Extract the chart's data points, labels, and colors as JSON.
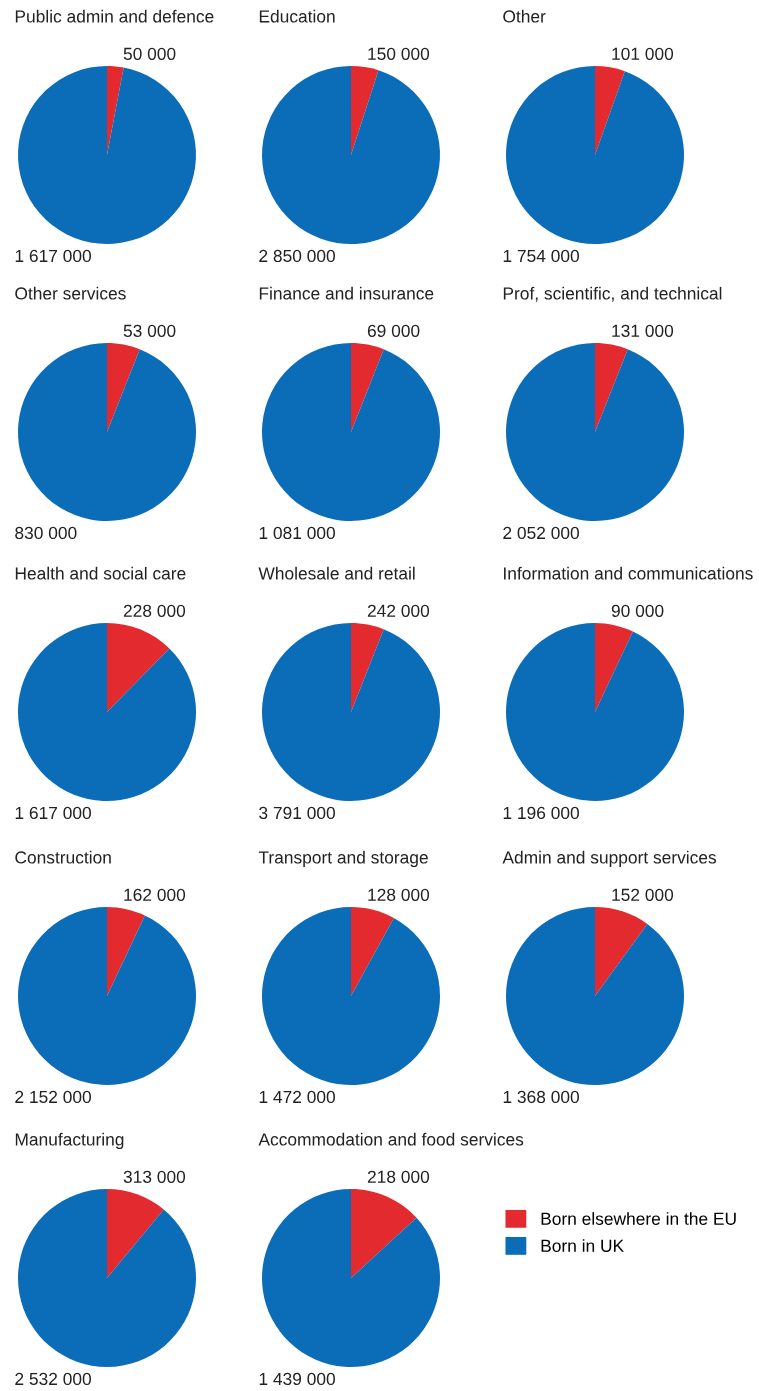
{
  "chart_data": [
    {
      "type": "pie",
      "title": "Public admin and defence",
      "categories": [
        null,
        null
      ],
      "values": [
        50000,
        1617000
      ],
      "value_labels": [
        "50 000",
        "1 617 000"
      ],
      "colors": [
        "#e32a2e",
        "#0b6db7"
      ],
      "legend": false
    },
    {
      "type": "pie",
      "title": "Education",
      "categories": [
        null,
        null
      ],
      "values": [
        150000,
        2850000
      ],
      "value_labels": [
        "150 000",
        "2 850 000"
      ],
      "colors": [
        "#e32a2e",
        "#0b6db7"
      ],
      "legend": false
    },
    {
      "type": "pie",
      "title": "Other",
      "categories": [
        null,
        null
      ],
      "values": [
        101000,
        1754000
      ],
      "value_labels": [
        "101 000",
        "1 754 000"
      ],
      "colors": [
        "#e32a2e",
        "#0b6db7"
      ],
      "legend": false
    },
    {
      "type": "pie",
      "title": "Other services",
      "categories": [
        null,
        null
      ],
      "values": [
        53000,
        830000
      ],
      "value_labels": [
        "53 000",
        "830 000"
      ],
      "colors": [
        "#e32a2e",
        "#0b6db7"
      ],
      "legend": false
    },
    {
      "type": "pie",
      "title": "Finance and insurance",
      "categories": [
        null,
        null
      ],
      "values": [
        69000,
        1081000
      ],
      "value_labels": [
        "69 000",
        "1 081 000"
      ],
      "colors": [
        "#e32a2e",
        "#0b6db7"
      ],
      "legend": false
    },
    {
      "type": "pie",
      "title": "Prof, scientific, and technical",
      "categories": [
        null,
        null
      ],
      "values": [
        131000,
        2052000
      ],
      "value_labels": [
        "131 000",
        "2 052 000"
      ],
      "colors": [
        "#e32a2e",
        "#0b6db7"
      ],
      "legend": false
    },
    {
      "type": "pie",
      "title": "Health and social care",
      "categories": [
        null,
        null
      ],
      "values": [
        228000,
        1617000
      ],
      "value_labels": [
        "228 000",
        "1 617 000"
      ],
      "colors": [
        "#e32a2e",
        "#0b6db7"
      ],
      "legend": false
    },
    {
      "type": "pie",
      "title": "Wholesale and retail",
      "categories": [
        null,
        null
      ],
      "values": [
        242000,
        3791000
      ],
      "value_labels": [
        "242 000",
        "3 791 000"
      ],
      "colors": [
        "#e32a2e",
        "#0b6db7"
      ],
      "legend": false
    },
    {
      "type": "pie",
      "title": "Information and communications",
      "categories": [
        null,
        null
      ],
      "values": [
        90000,
        1196000
      ],
      "value_labels": [
        "90 000",
        "1 196 000"
      ],
      "colors": [
        "#e32a2e",
        "#0b6db7"
      ],
      "legend": false
    },
    {
      "type": "pie",
      "title": "Construction",
      "categories": [
        null,
        null
      ],
      "values": [
        162000,
        2152000
      ],
      "value_labels": [
        "162 000",
        "2 152 000"
      ],
      "colors": [
        "#e32a2e",
        "#0b6db7"
      ],
      "legend": false
    },
    {
      "type": "pie",
      "title": "Transport and storage",
      "categories": [
        null,
        null
      ],
      "values": [
        128000,
        1472000
      ],
      "value_labels": [
        "128 000",
        "1 472 000"
      ],
      "colors": [
        "#e32a2e",
        "#0b6db7"
      ],
      "legend": false
    },
    {
      "type": "pie",
      "title": "Admin and support services",
      "categories": [
        null,
        null
      ],
      "values": [
        152000,
        1368000
      ],
      "value_labels": [
        "152 000",
        "1 368 000"
      ],
      "colors": [
        "#e32a2e",
        "#0b6db7"
      ],
      "legend": false
    },
    {
      "type": "pie",
      "title": "Manufacturing",
      "categories": [
        null,
        null
      ],
      "values": [
        313000,
        2532000
      ],
      "value_labels": [
        "313 000",
        "2 532 000"
      ],
      "colors": [
        "#e32a2e",
        "#0b6db7"
      ],
      "legend": false
    },
    {
      "type": "pie",
      "title": "Accommodation and food services",
      "categories": [
        "Born elsewhere in the EU",
        "Born in UK"
      ],
      "values": [
        218000,
        1439000
      ],
      "value_labels": [
        "218 000",
        "1 439 000"
      ],
      "colors": [
        "#e32a2e",
        "#0b6db7"
      ],
      "legend": "right"
    }
  ]
}
